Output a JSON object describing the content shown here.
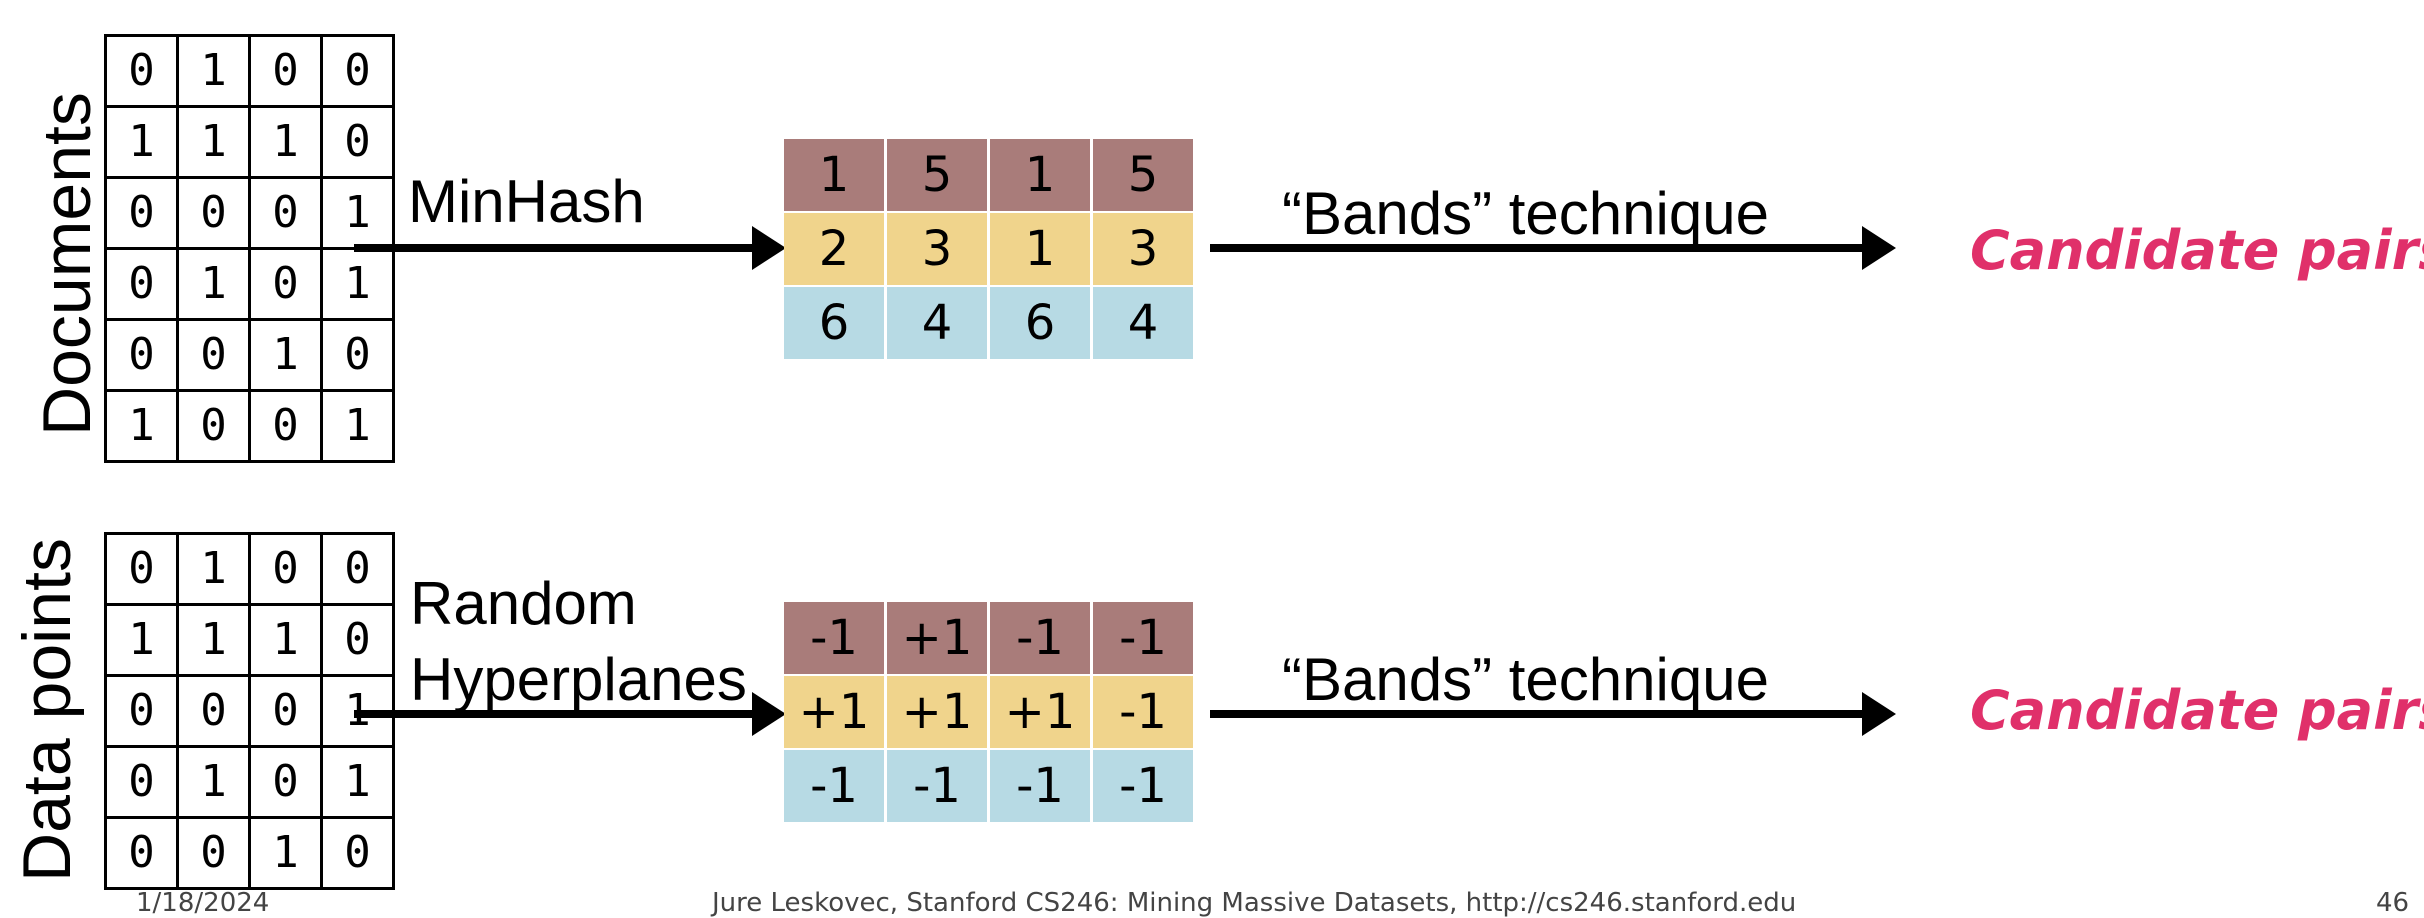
{
  "rows": [
    {
      "side_label": "Documents",
      "matrix": [
        [
          "0",
          "1",
          "0",
          "0"
        ],
        [
          "1",
          "1",
          "1",
          "0"
        ],
        [
          "0",
          "0",
          "0",
          "1"
        ],
        [
          "0",
          "1",
          "0",
          "1"
        ],
        [
          "0",
          "0",
          "1",
          "0"
        ],
        [
          "1",
          "0",
          "0",
          "1"
        ]
      ],
      "method_label": "MinHash",
      "signature": [
        [
          "1",
          "5",
          "1",
          "5"
        ],
        [
          "2",
          "3",
          "1",
          "3"
        ],
        [
          "6",
          "4",
          "6",
          "4"
        ]
      ],
      "technique_label": "“Bands” technique",
      "result_label": "Candidate pairs"
    },
    {
      "side_label": "Data points",
      "matrix": [
        [
          "0",
          "1",
          "0",
          "0"
        ],
        [
          "1",
          "1",
          "1",
          "0"
        ],
        [
          "0",
          "0",
          "0",
          "1"
        ],
        [
          "0",
          "1",
          "0",
          "1"
        ],
        [
          "0",
          "0",
          "1",
          "0"
        ]
      ],
      "method_label_line1": "Random",
      "method_label_line2": "Hyperplanes",
      "signature": [
        [
          "-1",
          "+1",
          "-1",
          "-1"
        ],
        [
          "+1",
          "+1",
          "+1",
          "-1"
        ],
        [
          "-1",
          "-1",
          "-1",
          "-1"
        ]
      ],
      "technique_label": "“Bands” technique",
      "result_label": "Candidate pairs"
    }
  ],
  "footer": {
    "date": "1/18/2024",
    "credit": "Jure Leskovec, Stanford CS246: Mining Massive Datasets, http://cs246.stanford.edu",
    "page": "46"
  }
}
